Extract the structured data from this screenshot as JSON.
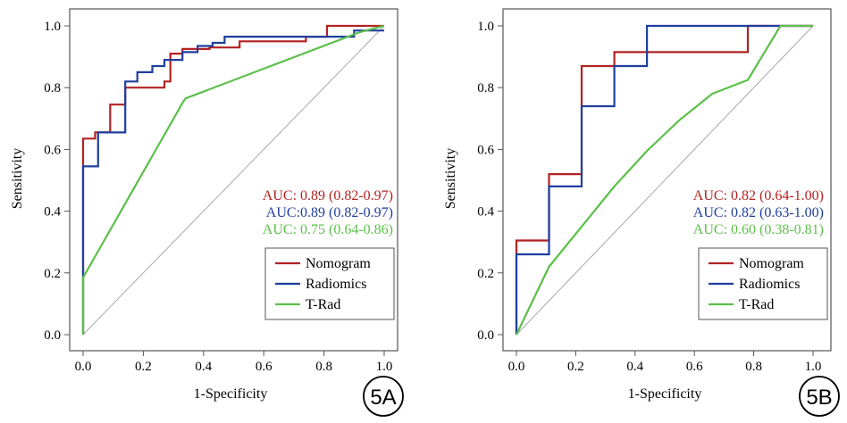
{
  "colors": {
    "nomogram": "#b22222",
    "radiomics": "#1f3f9f",
    "trad": "#5cbf4a",
    "diagonal": "#a8a8a8",
    "frame": "#555555"
  },
  "chart_data": [
    {
      "type": "line",
      "panel_label": "5A",
      "xlabel": "1-Specificity",
      "ylabel": "Sensitivity",
      "xlim": [
        0,
        1
      ],
      "ylim": [
        0,
        1
      ],
      "x_ticks": [
        "0.0",
        "0.2",
        "0.4",
        "0.6",
        "0.8",
        "1.0"
      ],
      "y_ticks": [
        "0.0",
        "0.2",
        "0.4",
        "0.6",
        "0.8",
        "1.0"
      ],
      "grid": false,
      "legend_position": "bottom-right",
      "auc_labels": [
        {
          "text": "AUC: 0.89 (0.82-0.97)",
          "color_key": "nomogram"
        },
        {
          "text": "AUC:0.89 (0.82-0.97)",
          "color_key": "radiomics"
        },
        {
          "text": "AUC: 0.75 (0.64-0.86)",
          "color_key": "trad"
        }
      ],
      "series": [
        {
          "name": "Nomogram",
          "color_key": "nomogram",
          "points": [
            [
              0,
              0
            ],
            [
              0,
              0.55
            ],
            [
              0,
              0.635
            ],
            [
              0.04,
              0.635
            ],
            [
              0.04,
              0.655
            ],
            [
              0.09,
              0.655
            ],
            [
              0.09,
              0.745
            ],
            [
              0.14,
              0.745
            ],
            [
              0.14,
              0.8
            ],
            [
              0.27,
              0.8
            ],
            [
              0.27,
              0.82
            ],
            [
              0.29,
              0.82
            ],
            [
              0.29,
              0.91
            ],
            [
              0.33,
              0.91
            ],
            [
              0.33,
              0.925
            ],
            [
              0.42,
              0.925
            ],
            [
              0.42,
              0.93
            ],
            [
              0.52,
              0.93
            ],
            [
              0.52,
              0.95
            ],
            [
              0.74,
              0.95
            ],
            [
              0.74,
              0.965
            ],
            [
              0.81,
              0.965
            ],
            [
              0.81,
              1.0
            ],
            [
              1.0,
              1.0
            ]
          ]
        },
        {
          "name": "Radiomics",
          "color_key": "radiomics",
          "points": [
            [
              0,
              0
            ],
            [
              0,
              0.545
            ],
            [
              0.05,
              0.545
            ],
            [
              0.05,
              0.655
            ],
            [
              0.14,
              0.655
            ],
            [
              0.14,
              0.82
            ],
            [
              0.18,
              0.82
            ],
            [
              0.18,
              0.85
            ],
            [
              0.23,
              0.85
            ],
            [
              0.23,
              0.87
            ],
            [
              0.27,
              0.87
            ],
            [
              0.27,
              0.89
            ],
            [
              0.33,
              0.89
            ],
            [
              0.33,
              0.915
            ],
            [
              0.38,
              0.915
            ],
            [
              0.38,
              0.935
            ],
            [
              0.43,
              0.935
            ],
            [
              0.43,
              0.945
            ],
            [
              0.47,
              0.945
            ],
            [
              0.47,
              0.965
            ],
            [
              0.9,
              0.965
            ],
            [
              0.9,
              0.985
            ],
            [
              1.0,
              0.985
            ]
          ]
        },
        {
          "name": "T-Rad",
          "color_key": "trad",
          "points": [
            [
              0,
              0
            ],
            [
              0,
              0.185
            ],
            [
              0.33,
              0.75
            ],
            [
              0.34,
              0.765
            ],
            [
              0.92,
              0.98
            ],
            [
              1.0,
              1.0
            ]
          ]
        }
      ]
    },
    {
      "type": "line",
      "panel_label": "5B",
      "xlabel": "1-Specificity",
      "ylabel": "Sensitivity",
      "xlim": [
        0,
        1
      ],
      "ylim": [
        0,
        1
      ],
      "x_ticks": [
        "0.0",
        "0.2",
        "0.4",
        "0.6",
        "0.8",
        "1.0"
      ],
      "y_ticks": [
        "0.0",
        "0.2",
        "0.4",
        "0.6",
        "0.8",
        "1.0"
      ],
      "grid": false,
      "legend_position": "bottom-right",
      "auc_labels": [
        {
          "text": "AUC: 0.82 (0.64-1.00)",
          "color_key": "nomogram"
        },
        {
          "text": "AUC: 0.82 (0.63-1.00)",
          "color_key": "radiomics"
        },
        {
          "text": "AUC: 0.60 (0.38-0.81)",
          "color_key": "trad"
        }
      ],
      "series": [
        {
          "name": "Nomogram",
          "color_key": "nomogram",
          "points": [
            [
              0,
              0
            ],
            [
              0,
              0.305
            ],
            [
              0.11,
              0.305
            ],
            [
              0.11,
              0.52
            ],
            [
              0.22,
              0.52
            ],
            [
              0.22,
              0.87
            ],
            [
              0.33,
              0.87
            ],
            [
              0.33,
              0.915
            ],
            [
              0.78,
              0.915
            ],
            [
              0.78,
              1.0
            ],
            [
              1.0,
              1.0
            ]
          ]
        },
        {
          "name": "Radiomics",
          "color_key": "radiomics",
          "points": [
            [
              0,
              0
            ],
            [
              0,
              0.26
            ],
            [
              0.11,
              0.26
            ],
            [
              0.11,
              0.48
            ],
            [
              0.22,
              0.48
            ],
            [
              0.22,
              0.74
            ],
            [
              0.33,
              0.74
            ],
            [
              0.33,
              0.87
            ],
            [
              0.44,
              0.87
            ],
            [
              0.44,
              1.0
            ],
            [
              1.0,
              1.0
            ]
          ]
        },
        {
          "name": "T-Rad",
          "color_key": "trad",
          "points": [
            [
              0,
              0
            ],
            [
              0.11,
              0.22
            ],
            [
              0.22,
              0.35
            ],
            [
              0.33,
              0.48
            ],
            [
              0.44,
              0.595
            ],
            [
              0.55,
              0.695
            ],
            [
              0.66,
              0.78
            ],
            [
              0.78,
              0.825
            ],
            [
              0.89,
              1.0
            ],
            [
              1.0,
              1.0
            ]
          ]
        }
      ]
    }
  ]
}
